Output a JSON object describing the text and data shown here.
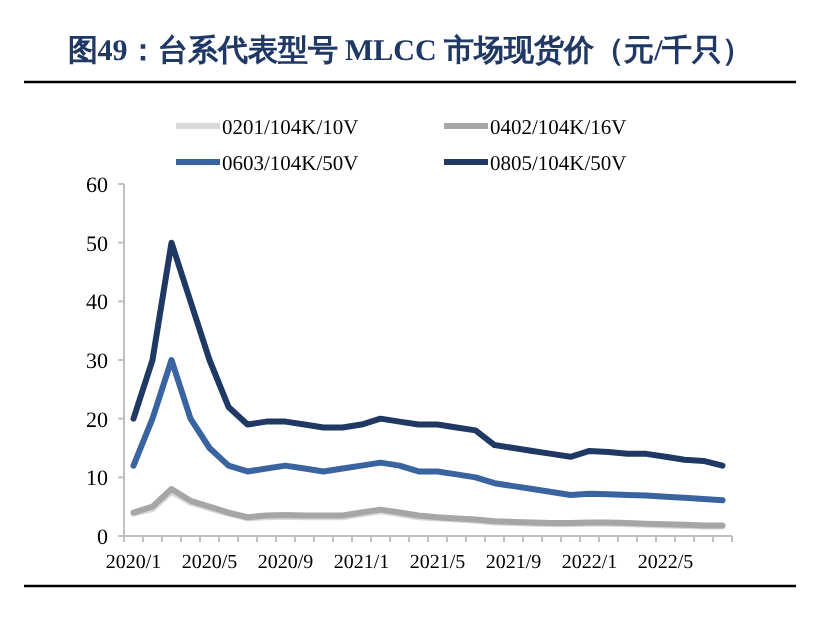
{
  "chart_data": {
    "type": "line",
    "title": "图49：台系代表型号 MLCC 市场现货价（元/千只）",
    "categories": [
      "2020/1",
      null,
      null,
      null,
      "2020/5",
      null,
      null,
      null,
      "2020/9",
      null,
      null,
      null,
      "2021/1",
      null,
      null,
      null,
      "2021/5",
      null,
      null,
      null,
      "2021/9",
      null,
      null,
      null,
      "2022/1",
      null,
      null,
      null,
      "2022/5",
      null,
      null,
      null
    ],
    "series": [
      {
        "name": "0201/104K/10V",
        "color": "#d9d9d9",
        "values": [
          3.8,
          4.6,
          7.5,
          5.7,
          4.7,
          3.8,
          3,
          3.2,
          3.3,
          3.2,
          3.2,
          3.2,
          3.7,
          4.2,
          3.7,
          3.2,
          3,
          2.8,
          2.6,
          2.3,
          2.2,
          2.1,
          2,
          2,
          2.1,
          2.1,
          2,
          1.9,
          1.8,
          1.7,
          1.6,
          1.6
        ]
      },
      {
        "name": "0402/104K/16V",
        "color": "#a6a6a6",
        "values": [
          4,
          5,
          8,
          6,
          5,
          4,
          3.2,
          3.5,
          3.6,
          3.5,
          3.5,
          3.5,
          4,
          4.5,
          4,
          3.5,
          3.2,
          3,
          2.8,
          2.5,
          2.4,
          2.3,
          2.2,
          2.2,
          2.3,
          2.3,
          2.2,
          2.1,
          2,
          1.9,
          1.8,
          1.8
        ]
      },
      {
        "name": "0603/104K/50V",
        "color": "#3a64a0",
        "values": [
          12,
          20,
          30,
          20,
          15,
          12,
          11,
          11.5,
          12,
          11.5,
          11,
          11.5,
          12,
          12.5,
          12,
          11,
          11,
          10.5,
          10,
          9,
          8.5,
          8,
          7.5,
          7,
          7.2,
          7.1,
          7,
          6.9,
          6.7,
          6.5,
          6.3,
          6.1
        ]
      },
      {
        "name": "0805/104K/50V",
        "color": "#1f3864",
        "values": [
          20,
          30,
          50,
          40,
          30,
          22,
          19,
          19.5,
          19.5,
          19,
          18.5,
          18.5,
          19,
          20,
          19.5,
          19,
          19,
          18.5,
          18,
          15.5,
          15,
          14.5,
          14,
          13.5,
          14.5,
          14.3,
          14,
          14,
          13.5,
          13,
          12.8,
          12
        ]
      }
    ],
    "ylim": [
      0,
      60
    ],
    "yticks": [
      0,
      10,
      20,
      30,
      40,
      50,
      60
    ],
    "legend": "top"
  }
}
